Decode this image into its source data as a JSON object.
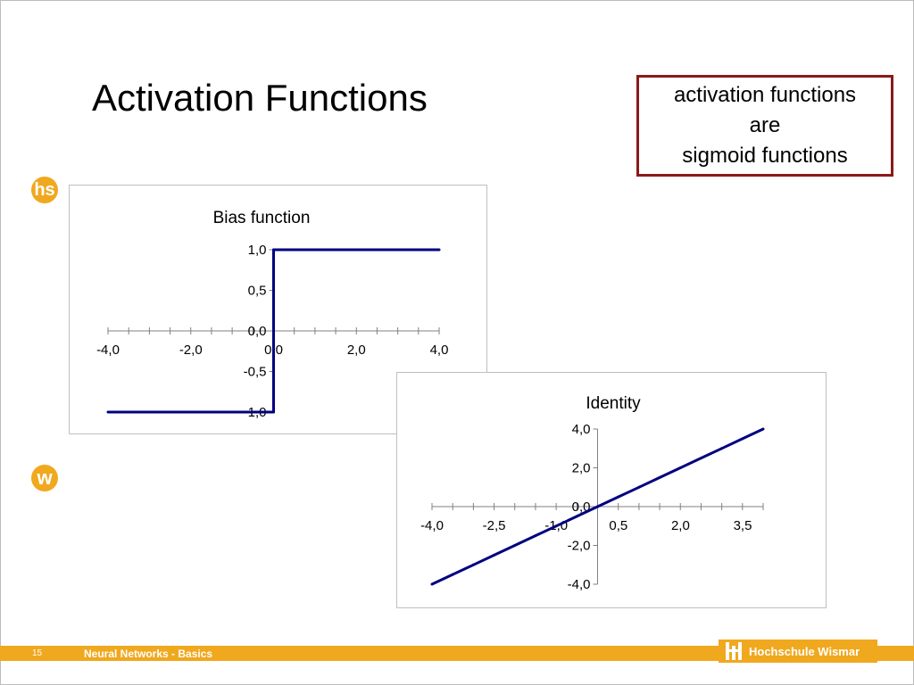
{
  "slide": {
    "title": "Activation Functions",
    "page_number": "15",
    "footer_text": "Neural Networks - Basics",
    "institution": "Hochschule Wismar",
    "logo_hs": "hs",
    "logo_w": "w"
  },
  "callout": {
    "lines": [
      "activation functions",
      "are",
      "sigmoid functions"
    ]
  },
  "colors": {
    "series": "#000080",
    "accent": "#f0a81e",
    "callout_border": "#8b1a1a"
  },
  "chart_data": [
    {
      "type": "line",
      "title": "Bias function",
      "xlabel": "",
      "ylabel": "",
      "xlim": [
        -4.0,
        4.0
      ],
      "ylim": [
        -1.0,
        1.0
      ],
      "x_ticks": [
        "-4,0",
        "-2,0",
        "0,0",
        "2,0",
        "4,0"
      ],
      "y_ticks": [
        "1,0",
        "0,5",
        "0,0",
        "-0,5",
        "-1,0"
      ],
      "grid": false,
      "legend": "none",
      "series": [
        {
          "x": [
            -4.0,
            -3.5,
            -3.0,
            -2.5,
            -2.0,
            -1.5,
            -1.0,
            -0.5,
            0.0,
            0.0,
            0.5,
            1.0,
            1.5,
            2.0,
            2.5,
            3.0,
            3.5,
            4.0
          ],
          "y": [
            -1,
            -1,
            -1,
            -1,
            -1,
            -1,
            -1,
            -1,
            -1,
            1,
            1,
            1,
            1,
            1,
            1,
            1,
            1,
            1
          ]
        }
      ]
    },
    {
      "type": "line",
      "title": "Identity",
      "xlabel": "",
      "ylabel": "",
      "xlim": [
        -4.0,
        4.0
      ],
      "ylim": [
        -4.0,
        4.0
      ],
      "x_ticks": [
        "-4,0",
        "-2,5",
        "-1,0",
        "0,5",
        "2,0",
        "3,5"
      ],
      "y_ticks": [
        "4,0",
        "2,0",
        "0,0",
        "-2,0",
        "-4,0"
      ],
      "grid": false,
      "legend": "none",
      "series": [
        {
          "x": [
            -4.0,
            -3.5,
            -3.0,
            -2.5,
            -2.0,
            -1.5,
            -1.0,
            -0.5,
            0.0,
            0.5,
            1.0,
            1.5,
            2.0,
            2.5,
            3.0,
            3.5,
            4.0
          ],
          "y": [
            -4.0,
            -3.5,
            -3.0,
            -2.5,
            -2.0,
            -1.5,
            -1.0,
            -0.5,
            0.0,
            0.5,
            1.0,
            1.5,
            2.0,
            2.5,
            3.0,
            3.5,
            4.0
          ]
        }
      ]
    }
  ]
}
